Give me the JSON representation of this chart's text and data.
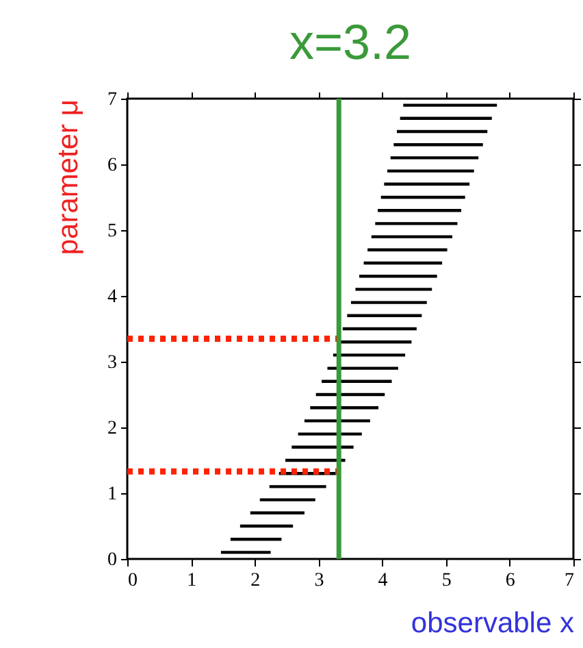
{
  "chart_data": {
    "type": "bar",
    "title": "x=3.2",
    "xlabel": "observable x",
    "ylabel": "parameter μ",
    "orientation": "horizontal",
    "xlim": [
      0,
      7
    ],
    "xticks": [
      0,
      1,
      2,
      3,
      4,
      5,
      6,
      7
    ],
    "ylim": [
      0,
      7
    ],
    "yticks": [
      0,
      1,
      2,
      3,
      4,
      5,
      6,
      7
    ],
    "grid": false,
    "legend": false,
    "series": [
      {
        "type": "bar",
        "color": "#000000",
        "x": [
          0.1,
          0.3,
          0.5,
          0.7,
          0.9,
          1.1,
          1.3,
          1.5,
          1.7,
          1.9,
          2.1,
          2.3,
          2.5,
          2.7,
          2.9,
          3.1,
          3.3,
          3.5,
          3.7,
          3.9,
          4.1,
          4.3,
          4.5,
          4.7,
          4.9,
          5.1,
          5.3,
          5.5,
          5.7,
          5.9,
          6.1,
          6.3,
          6.5,
          6.7,
          6.9
        ],
        "base": [
          1.47,
          1.62,
          1.77,
          1.93,
          2.08,
          2.23,
          2.38,
          2.48,
          2.58,
          2.68,
          2.78,
          2.87,
          2.96,
          3.05,
          3.14,
          3.23,
          3.31,
          3.38,
          3.45,
          3.51,
          3.58,
          3.64,
          3.71,
          3.77,
          3.83,
          3.89,
          3.93,
          3.98,
          4.03,
          4.08,
          4.13,
          4.18,
          4.23,
          4.28,
          4.33
        ],
        "values": [
          0.78,
          0.8,
          0.83,
          0.85,
          0.87,
          0.89,
          0.9,
          0.94,
          0.97,
          1.0,
          1.03,
          1.07,
          1.08,
          1.1,
          1.11,
          1.13,
          1.15,
          1.16,
          1.17,
          1.19,
          1.2,
          1.22,
          1.23,
          1.25,
          1.27,
          1.29,
          1.31,
          1.32,
          1.34,
          1.36,
          1.38,
          1.4,
          1.42,
          1.44,
          1.47
        ]
      },
      {
        "type": "line",
        "color": "#ff2200",
        "line_style": "dotted",
        "x": [
          3.35,
          3.35
        ],
        "values": [
          0,
          3.32
        ]
      },
      {
        "type": "line",
        "color": "#ff2200",
        "line_style": "dotted",
        "x": [
          1.33,
          1.33
        ],
        "values": [
          0,
          3.32
        ]
      }
    ],
    "ref_lines": [
      {
        "axis": "x",
        "value": 3.32,
        "color": "#3a9a3a"
      }
    ]
  }
}
